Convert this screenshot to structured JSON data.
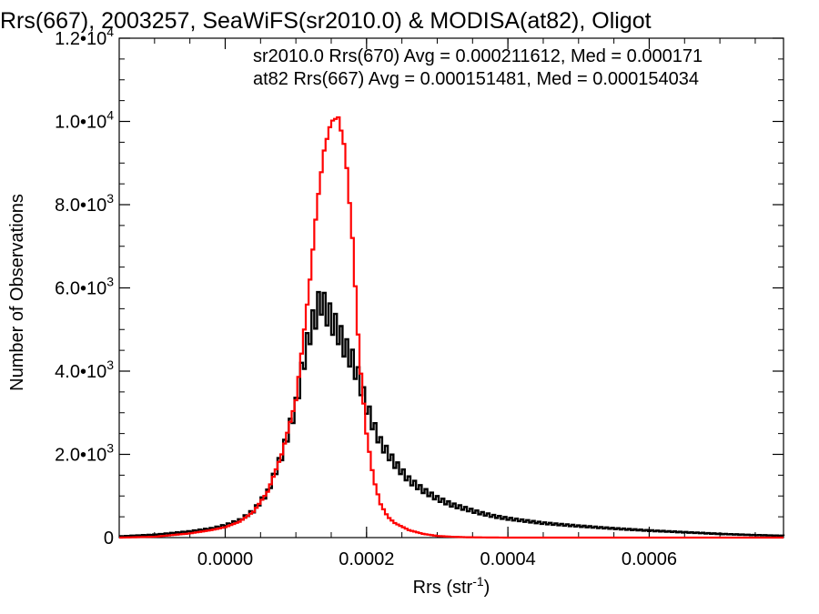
{
  "chart_data": {
    "type": "line",
    "title": "Rrs(667), 2003257, SeaWiFS(sr2010.0) & MODISA(at82), Oligot",
    "xlabel": "Rrs (str",
    "xlabel_sup": "-1",
    "xlabel_close": ")",
    "ylabel": "Number of Observations",
    "xlim": [
      -0.00015,
      0.00079
    ],
    "ylim": [
      0,
      12000
    ],
    "xticks": [
      {
        "value": 0.0,
        "label": "0.0000"
      },
      {
        "value": 0.0002,
        "label": "0.0002"
      },
      {
        "value": 0.0004,
        "label": "0.0004"
      },
      {
        "value": 0.0006,
        "label": "0.0006"
      }
    ],
    "yticks": [
      {
        "value": 0,
        "label": "0"
      },
      {
        "value": 2000,
        "label": "2.0•10",
        "exp": "3"
      },
      {
        "value": 4000,
        "label": "4.0•10",
        "exp": "3"
      },
      {
        "value": 6000,
        "label": "6.0•10",
        "exp": "3"
      },
      {
        "value": 8000,
        "label": "8.0•10",
        "exp": "3"
      },
      {
        "value": 10000,
        "label": "1.0•10",
        "exp": "4"
      },
      {
        "value": 12000,
        "label": "1.2•10",
        "exp": "4"
      }
    ],
    "grid": false,
    "legend": [
      {
        "text": "sr2010.0 Rrs(670) Avg = 0.000211612, Med = 0.000171",
        "color": "#000000"
      },
      {
        "text": "at82 Rrs(667) Avg = 0.000151481, Med = 0.000154034",
        "color": "#ff0000"
      }
    ],
    "series": [
      {
        "color": "#000000",
        "x": [
          -0.00015,
          -0.0001,
          -5e-05,
          -2e-05,
          0.0,
          2e-05,
          4e-05,
          6e-05,
          8e-05,
          0.0001,
          0.00011,
          0.00012,
          0.00013,
          0.000135,
          0.00014,
          0.00015,
          0.00016,
          0.00017,
          0.00018,
          0.00019,
          0.0002,
          0.00021,
          0.00022,
          0.00024,
          0.00026,
          0.00028,
          0.0003,
          0.00032,
          0.00034,
          0.00036,
          0.00038,
          0.0004,
          0.00045,
          0.0005,
          0.00055,
          0.0006,
          0.00065,
          0.0007,
          0.00075,
          0.00079
        ],
        "y": [
          30,
          70,
          150,
          220,
          300,
          420,
          650,
          1100,
          2000,
          3200,
          4200,
          5000,
          5500,
          5800,
          5600,
          5300,
          5000,
          4600,
          4300,
          3800,
          3200,
          2700,
          2300,
          1800,
          1400,
          1150,
          950,
          800,
          700,
          600,
          520,
          460,
          350,
          280,
          220,
          170,
          130,
          90,
          60,
          45
        ]
      },
      {
        "color": "#ff0000",
        "x": [
          -0.00015,
          -0.0001,
          -5e-05,
          -2e-05,
          0.0,
          2e-05,
          4e-05,
          6e-05,
          8e-05,
          0.0001,
          0.00011,
          0.00012,
          0.00013,
          0.00014,
          0.00015,
          0.00016,
          0.00017,
          0.00018,
          0.00019,
          0.0002,
          0.00021,
          0.00022,
          0.00023,
          0.00024,
          0.00026,
          0.00028,
          0.0003,
          0.00032,
          0.00034,
          0.00036,
          0.0004,
          0.0005,
          0.0006,
          0.0007,
          0.00079
        ],
        "y": [
          0,
          20,
          100,
          180,
          250,
          380,
          620,
          1100,
          2000,
          3300,
          4700,
          6200,
          8000,
          9300,
          10000,
          10100,
          9300,
          7200,
          4300,
          2500,
          1400,
          800,
          500,
          350,
          180,
          90,
          40,
          20,
          10,
          5,
          0,
          0,
          0,
          0,
          0
        ]
      }
    ]
  }
}
